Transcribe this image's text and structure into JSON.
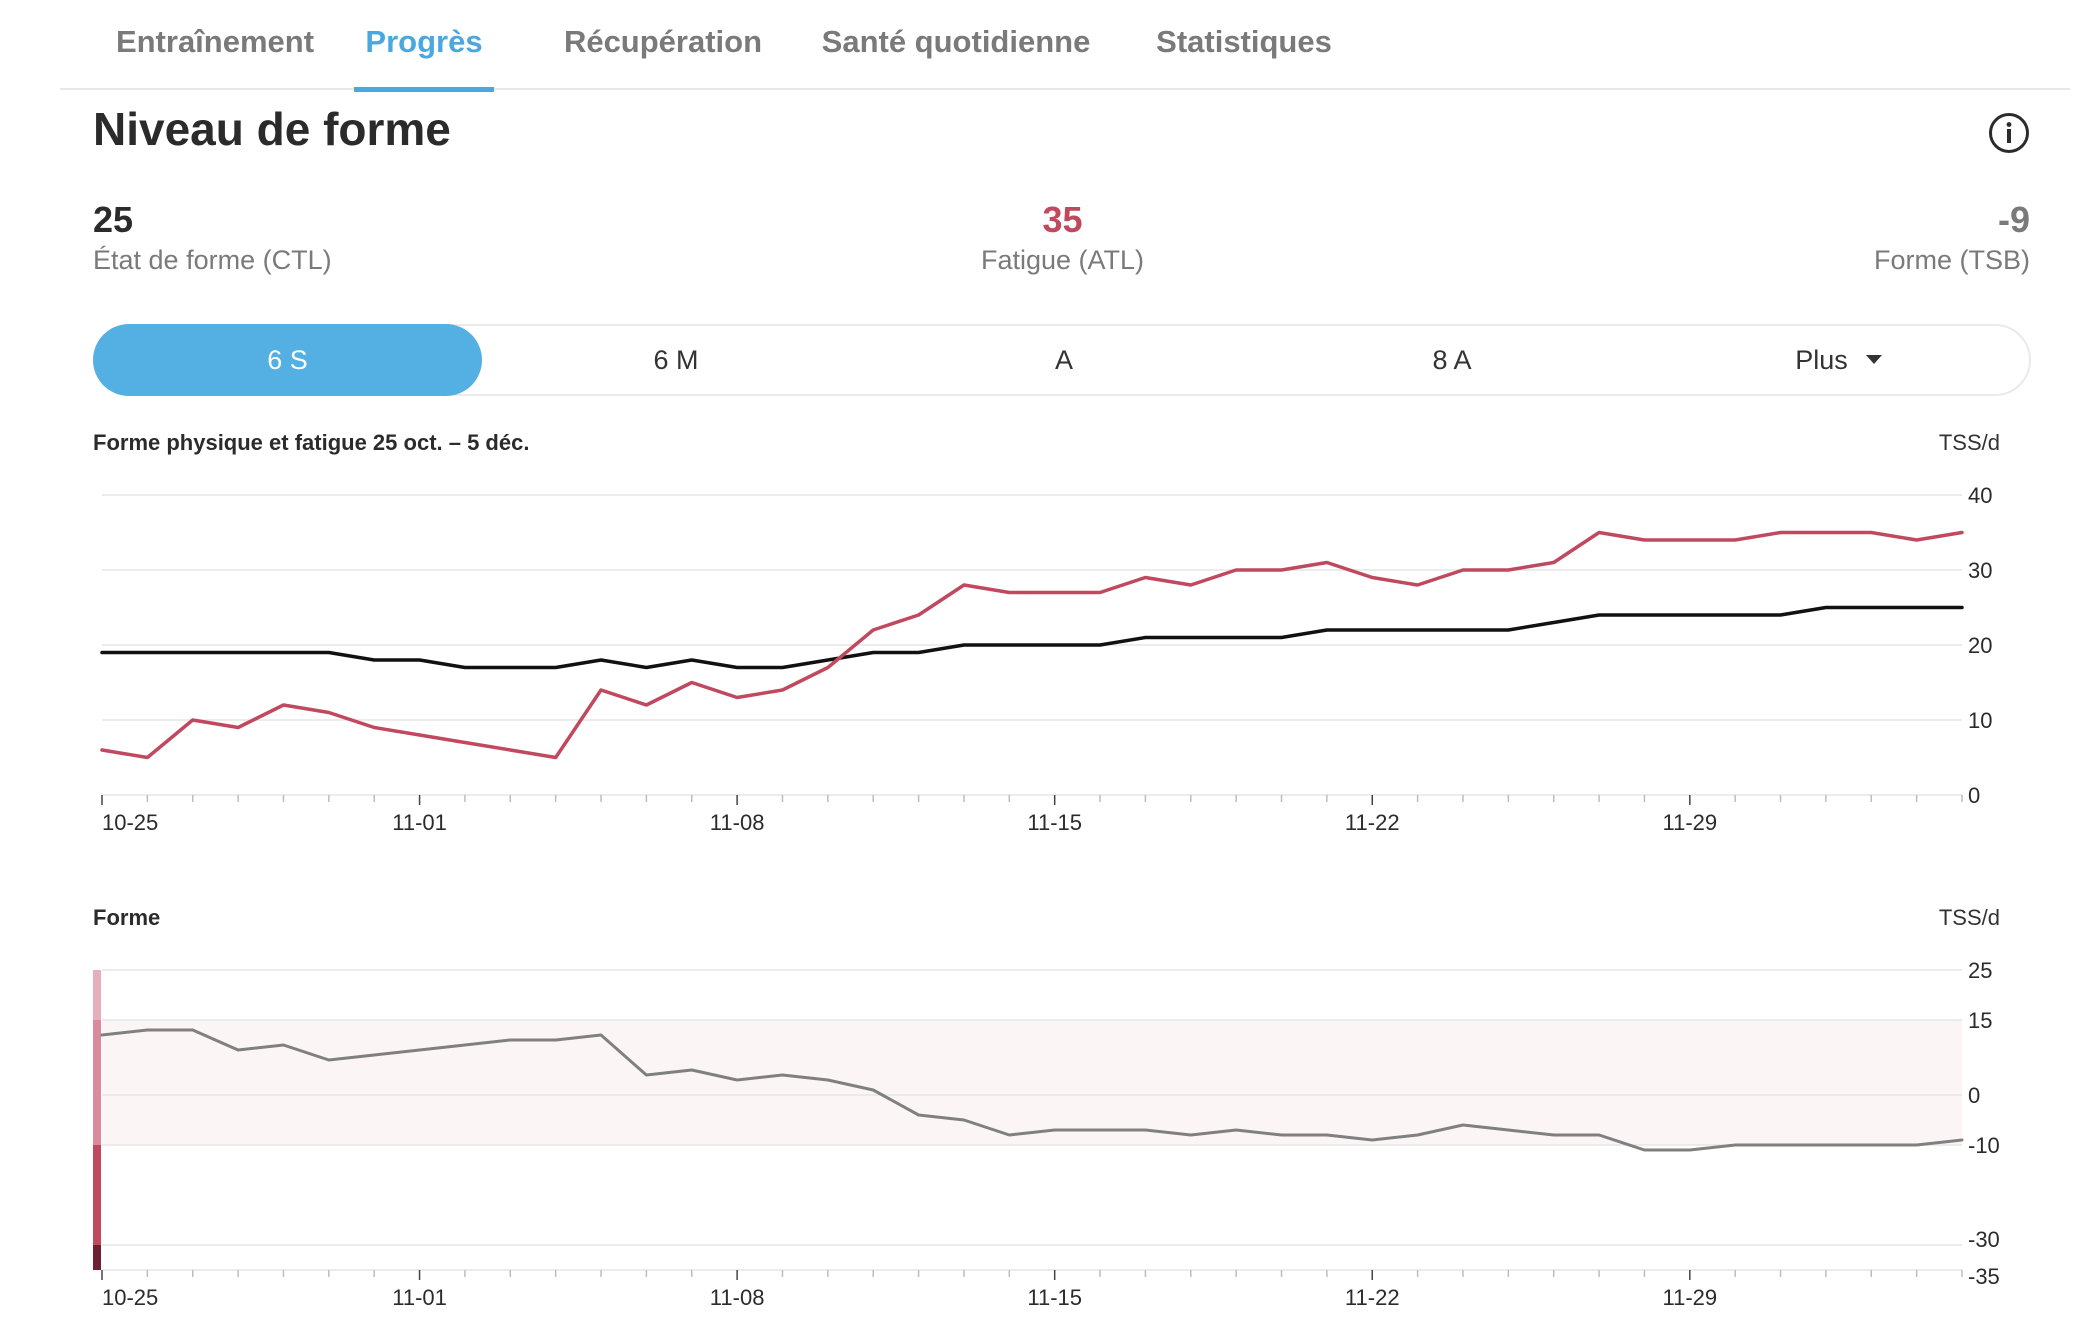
{
  "tabs": [
    {
      "label": "Entraînement",
      "active": false
    },
    {
      "label": "Progrès",
      "active": true
    },
    {
      "label": "Récupération",
      "active": false
    },
    {
      "label": "Santé quotidienne",
      "active": false
    },
    {
      "label": "Statistiques",
      "active": false
    }
  ],
  "page_title": "Niveau de forme",
  "info_icon": "info-icon",
  "metrics": {
    "ctl": {
      "value": "25",
      "label": "État de forme (CTL)"
    },
    "atl": {
      "value": "35",
      "label": "Fatigue (ATL)"
    },
    "tsb": {
      "value": "-9",
      "label": "Forme (TSB)"
    }
  },
  "range": {
    "options": [
      "6 S",
      "6 M",
      "A",
      "8 A",
      "Plus"
    ],
    "selected": "6 S"
  },
  "colors": {
    "accent": "#4aa8de",
    "segment_active": "#54b0e3",
    "fitness": "#111111",
    "fatigue": "#c0485f",
    "form": "#808080",
    "zone_fill": "#fbf5f6"
  },
  "chart_data": [
    {
      "type": "line",
      "title": "Forme physique et fatigue 25 oct. – 5 déc.",
      "unit": "TSS/d",
      "x_tick_labels": [
        "10-25",
        "11-01",
        "11-08",
        "11-15",
        "11-22",
        "11-29"
      ],
      "days": 42,
      "yticks": [
        0,
        10,
        20,
        30,
        40
      ],
      "ylim": [
        0,
        40
      ],
      "grid": true,
      "axis_side": "right",
      "series": [
        {
          "values": [
            19,
            19,
            19,
            19,
            19,
            19,
            18,
            18,
            17,
            17,
            17,
            18,
            17,
            18,
            17,
            17,
            18,
            19,
            19,
            20,
            20,
            20,
            20,
            21,
            21,
            21,
            21,
            22,
            22,
            22,
            22,
            22,
            23,
            24,
            24,
            24,
            24,
            24,
            25,
            25,
            25,
            25
          ]
        },
        {
          "values": [
            6,
            5,
            10,
            9,
            12,
            11,
            9,
            8,
            7,
            6,
            5,
            14,
            12,
            15,
            13,
            14,
            17,
            22,
            24,
            28,
            27,
            27,
            27,
            29,
            28,
            30,
            30,
            31,
            29,
            28,
            30,
            30,
            31,
            35,
            34,
            34,
            34,
            35,
            35,
            35,
            34,
            35
          ]
        }
      ]
    },
    {
      "type": "line",
      "title": "Forme",
      "unit": "TSS/d",
      "x_tick_labels": [
        "10-25",
        "11-01",
        "11-08",
        "11-15",
        "11-22",
        "11-29"
      ],
      "days": 42,
      "yticks": [
        25,
        15,
        0,
        -10,
        -30,
        -35
      ],
      "ylim": [
        -35,
        25
      ],
      "grid": true,
      "axis_side": "right",
      "zone": [
        -10,
        15
      ],
      "series": [
        {
          "values": [
            12,
            13,
            13,
            9,
            10,
            7,
            8,
            9,
            10,
            11,
            11,
            12,
            4,
            5,
            3,
            4,
            3,
            1,
            -4,
            -5,
            -8,
            -7,
            -7,
            -7,
            -8,
            -7,
            -8,
            -8,
            -9,
            -8,
            -6,
            -7,
            -8,
            -8,
            -11,
            -11,
            -10,
            -10,
            -10,
            -10,
            -10,
            -9
          ]
        }
      ]
    }
  ]
}
